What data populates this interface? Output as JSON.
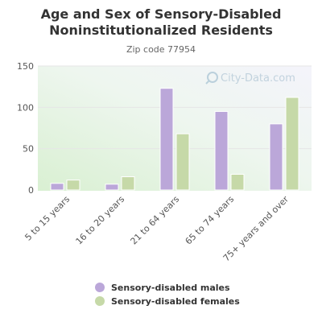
{
  "title_line1": "Age and Sex of Sensory-Disabled",
  "title_line2": "Noninstitutionalized Residents",
  "subtitle": "Zip code 77954",
  "watermark": "City-Data.com",
  "colors": {
    "male": "#bba7d9",
    "female": "#c6d9a8",
    "grid": "#e6e6e6",
    "axis_text": "#555555"
  },
  "chart_data": {
    "type": "bar",
    "categories": [
      "5 to 15 years",
      "16 to 20 years",
      "21 to 64 years",
      "65 to 74 years",
      "75+ years and over"
    ],
    "series": [
      {
        "name": "Sensory-disabled males",
        "values": [
          8,
          7,
          123,
          95,
          80
        ]
      },
      {
        "name": "Sensory-disabled females",
        "values": [
          12,
          16,
          68,
          19,
          112
        ]
      }
    ],
    "ylim": [
      0,
      150
    ],
    "yticks": [
      0,
      50,
      100,
      150
    ],
    "grid": true,
    "legend_position": "bottom"
  }
}
